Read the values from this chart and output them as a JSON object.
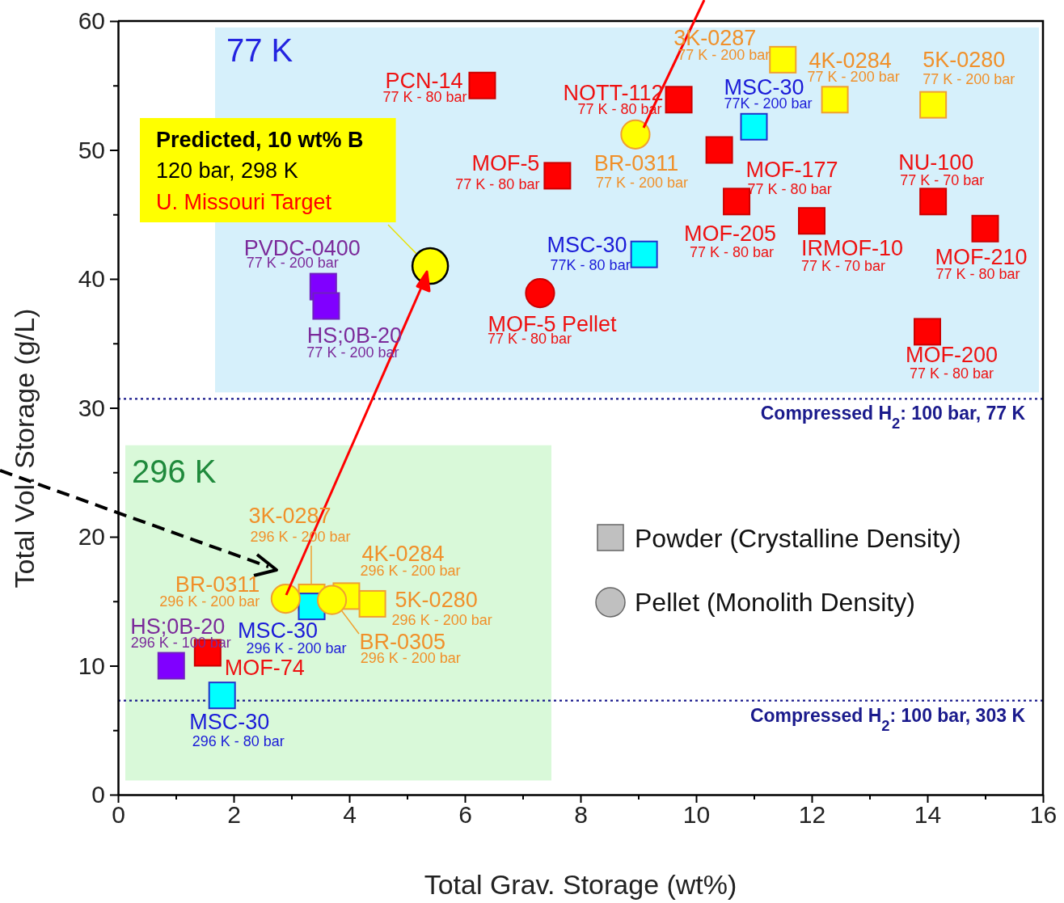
{
  "chart_data": {
    "type": "scatter",
    "xlabel": "Total Grav. Storage (wt%)",
    "ylabel": "Total Vol. Storage (g/L)",
    "xlim": [
      0,
      16
    ],
    "ylim": [
      0,
      60
    ],
    "xticks": [
      0,
      {
        "value": 1,
        "label": null
      },
      2,
      {
        "value": 3,
        "label": null
      },
      4,
      {
        "value": 5,
        "label": null
      },
      6,
      {
        "value": 7,
        "label": null
      },
      8,
      {
        "value": 9,
        "label": null
      },
      10,
      {
        "value": 11,
        "label": null
      },
      12,
      {
        "value": 13,
        "label": null
      },
      14,
      {
        "value": 15,
        "label": null
      },
      16
    ],
    "yticks": [
      0,
      {
        "value": 5,
        "label": null
      },
      10,
      {
        "value": 15,
        "label": null
      },
      20,
      {
        "value": 25,
        "label": null
      },
      30,
      {
        "value": 35,
        "label": null
      },
      40,
      {
        "value": 45,
        "label": null
      },
      50,
      {
        "value": 55,
        "label": null
      },
      60
    ],
    "grid": false,
    "series": [
      {
        "marker": "square",
        "x": [
          6.3,
          9.7,
          7.6,
          10.4,
          10.7,
          12,
          14.1,
          15,
          14,
          11.5,
          12.4,
          14.1,
          11,
          9.1,
          3.55,
          3.6,
          3.35,
          3.35,
          3.95,
          4.4,
          0.92,
          1.55,
          1.8
        ],
        "values": [
          55,
          53.9,
          48,
          50,
          46,
          44.5,
          46,
          43.9,
          35.9,
          57,
          53.9,
          53.5,
          51.8,
          41.9,
          39.4,
          37.9,
          15.3,
          14.6,
          15.4,
          14.8,
          10,
          11,
          7.7
        ],
        "colors": [
          "#ff0000",
          "#ff0000",
          "#ff0000",
          "#ff0000",
          "#ff0000",
          "#ff0000",
          "#ff0000",
          "#ff0000",
          "#ff0000",
          "#ffff00",
          "#ffff00",
          "#ffff00",
          "#00ffff",
          "#00ffff",
          "#8000ff",
          "#8000ff",
          "#ffff00",
          "#00ffff",
          "#ffff00",
          "#ffff00",
          "#8000ff",
          "#ff0000",
          "#00ffff"
        ]
      },
      {
        "marker": "circle",
        "x": [
          8.95,
          7.3,
          2.9,
          3.7
        ],
        "values": [
          51.2,
          38.9,
          15.2,
          15.1
        ],
        "colors": [
          "#ffff00",
          "#ff0000",
          "#ffff00",
          "#ffff00"
        ]
      },
      {
        "marker": "circle",
        "color": "#ffff00",
        "x": [
          5.4
        ],
        "values": [
          41
        ]
      }
    ],
    "ref_lines": [
      {
        "axis": "y",
        "value": 30.7,
        "color": "#1a1a8c",
        "line_style": "dotted"
      },
      {
        "axis": "y",
        "value": 7.3,
        "color": "#1a1a8c",
        "line_style": "dotted"
      }
    ],
    "bands": [
      {
        "axis": "y",
        "from": 31.2,
        "to": 59.5,
        "label": "77 K",
        "color": "#d6f0fb"
      },
      {
        "axis": "y",
        "from": 1.1,
        "to": 27.1,
        "label": "296 K",
        "color": "#d9f9d9"
      }
    ],
    "annotations": [
      {
        "text": "PCN-14",
        "x": 6.3,
        "y": 55
      },
      {
        "text": "77 K - 80 bar",
        "x": 6.3,
        "y": 55
      },
      {
        "text": "NOTT-112",
        "x": 9.7,
        "y": 53.9
      },
      {
        "text": "77 K - 80 bar",
        "x": 9.7,
        "y": 53.9
      },
      {
        "text": "MOF-5",
        "x": 7.6,
        "y": 48
      },
      {
        "text": "77 K - 80 bar",
        "x": 7.6,
        "y": 48
      },
      {
        "text": "MOF-177",
        "x": 10.4,
        "y": 50
      },
      {
        "text": "77 K - 80 bar",
        "x": 10.4,
        "y": 50
      },
      {
        "text": "MOF-205",
        "x": 10.7,
        "y": 46
      },
      {
        "text": "77 K - 80 bar",
        "x": 10.7,
        "y": 46
      },
      {
        "text": "IRMOF-10",
        "x": 12,
        "y": 44.5
      },
      {
        "text": "77 K - 70 bar",
        "x": 12,
        "y": 44.5
      },
      {
        "text": "NU-100",
        "x": 14.1,
        "y": 46
      },
      {
        "text": "77 K - 70 bar",
        "x": 14.1,
        "y": 46
      },
      {
        "text": "MOF-210",
        "x": 15,
        "y": 43.9
      },
      {
        "text": "77 K - 80 bar",
        "x": 15,
        "y": 43.9
      },
      {
        "text": "MOF-200",
        "x": 14,
        "y": 35.9
      },
      {
        "text": "77 K - 80 bar",
        "x": 14,
        "y": 35.9
      },
      {
        "text": "3K-0287",
        "x": 11.5,
        "y": 57
      },
      {
        "text": "77 K - 200 bar",
        "x": 11.5,
        "y": 57
      },
      {
        "text": "4K-0284",
        "x": 12.4,
        "y": 53.9
      },
      {
        "text": "77 K - 200 bar",
        "x": 12.4,
        "y": 53.9
      },
      {
        "text": "5K-0280",
        "x": 14.1,
        "y": 53.5
      },
      {
        "text": "77 K - 200 bar",
        "x": 14.1,
        "y": 53.5
      },
      {
        "text": "MSC-30",
        "x": 11,
        "y": 51.8
      },
      {
        "text": "77K - 200 bar",
        "x": 11,
        "y": 51.8
      },
      {
        "text": "MSC-30",
        "x": 9.1,
        "y": 41.9
      },
      {
        "text": "77K - 80 bar",
        "x": 9.1,
        "y": 41.9
      },
      {
        "text": "PVDC-0400",
        "x": 3.55,
        "y": 39.4
      },
      {
        "text": "77 K - 200 bar",
        "x": 3.55,
        "y": 39.4
      },
      {
        "text": "HS;0B-20",
        "x": 3.6,
        "y": 37.9
      },
      {
        "text": "77 K - 200 bar",
        "x": 3.6,
        "y": 37.9
      },
      {
        "text": "BR-0311",
        "x": 8.95,
        "y": 51.2
      },
      {
        "text": "77 K - 200 bar",
        "x": 8.95,
        "y": 51.2
      },
      {
        "text": "MOF-5 Pellet",
        "x": 7.3,
        "y": 38.9
      },
      {
        "text": "77 K - 80 bar",
        "x": 7.3,
        "y": 38.9
      },
      {
        "text": "3K-0287",
        "x": 3.35,
        "y": 16.4
      },
      "296 K - 200 bar",
      {
        "text": "MSC-30",
        "x": 3.35,
        "y": 14.6
      },
      {
        "text": "296 K - 200 bar",
        "x": 3.35,
        "y": 14.6
      },
      {
        "text": "4K-0284",
        "x": 3.95,
        "y": 15.4
      },
      {
        "text": "296 K - 200 bar",
        "x": 3.95,
        "y": 15.4
      },
      {
        "text": "5K-0280",
        "x": 4.4,
        "y": 14.8
      },
      {
        "text": "296 K - 200 bar",
        "x": 4.4,
        "y": 14.8
      },
      {
        "text": "HS;0B-20",
        "x": 0.92,
        "y": 10
      },
      {
        "text": "296 K - 100 bar",
        "x": 0.92,
        "y": 10
      },
      {
        "text": "MOF-74",
        "x": 1.55,
        "y": 11
      },
      {
        "text": "MSC-30",
        "x": 1.8,
        "y": 7.7
      },
      {
        "text": "296 K - 80 bar",
        "x": 1.8,
        "y": 7.7
      },
      {
        "text": "BR-0311",
        "x": 2.9,
        "y": 15.2
      },
      {
        "text": "296 K - 200 bar",
        "x": 2.9,
        "y": 15.2
      },
      {
        "text": "BR-0305",
        "x": 3.7,
        "y": 15.1
      },
      {
        "text": "296 K - 200 bar",
        "x": 3.83,
        "y": 14.5
      },
      "Predicted, 10 wt% B",
      "120 bar, 298 K",
      "U. Missouri Target",
      "Compressed H$_{2}$: 100 bar, 77 K",
      "Compressed H$_{2}$: 100 bar, 303 K",
      "Powder (Crystalline Density)",
      "Pellet (Monolith Density)"
    ]
  }
}
